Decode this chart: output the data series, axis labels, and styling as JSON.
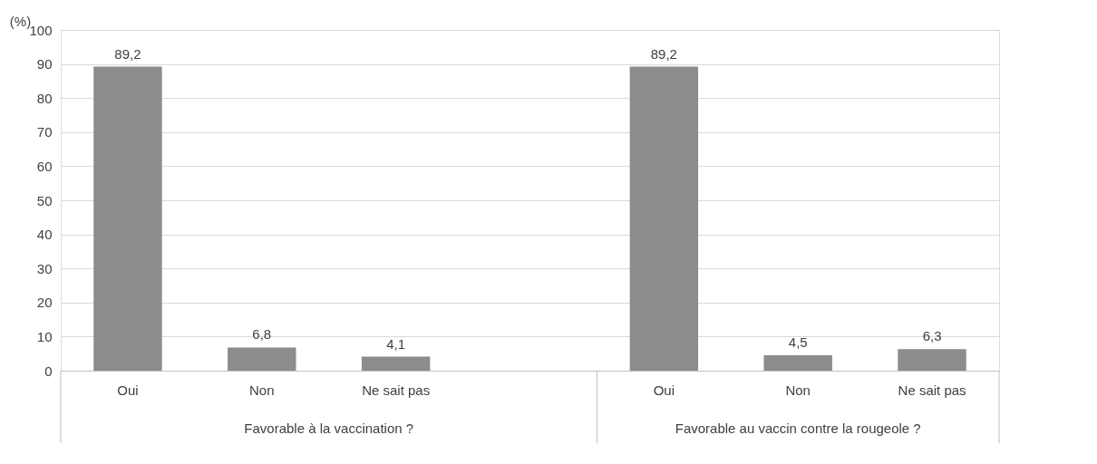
{
  "chart_data": {
    "type": "bar",
    "ylabel": "(%)",
    "categories": [
      "Oui",
      "Non",
      "Ne sait pas",
      null,
      "Oui",
      "Non",
      "Ne sait pas"
    ],
    "values": [
      89.2,
      6.8,
      4.1,
      null,
      89.2,
      4.5,
      6.3
    ],
    "value_labels": [
      "89,2",
      "6,8",
      "4,1",
      null,
      "89,2",
      "4,5",
      "6,3"
    ],
    "color": "#8c8c8c",
    "ylim": [
      0,
      100
    ],
    "yticks": [
      0,
      10,
      20,
      30,
      40,
      50,
      60,
      70,
      80,
      90,
      100
    ],
    "grid": "y",
    "annotations": [
      "Favorable à la vaccination ?",
      "Favorable au vaccin contre la rougeole ?"
    ]
  }
}
